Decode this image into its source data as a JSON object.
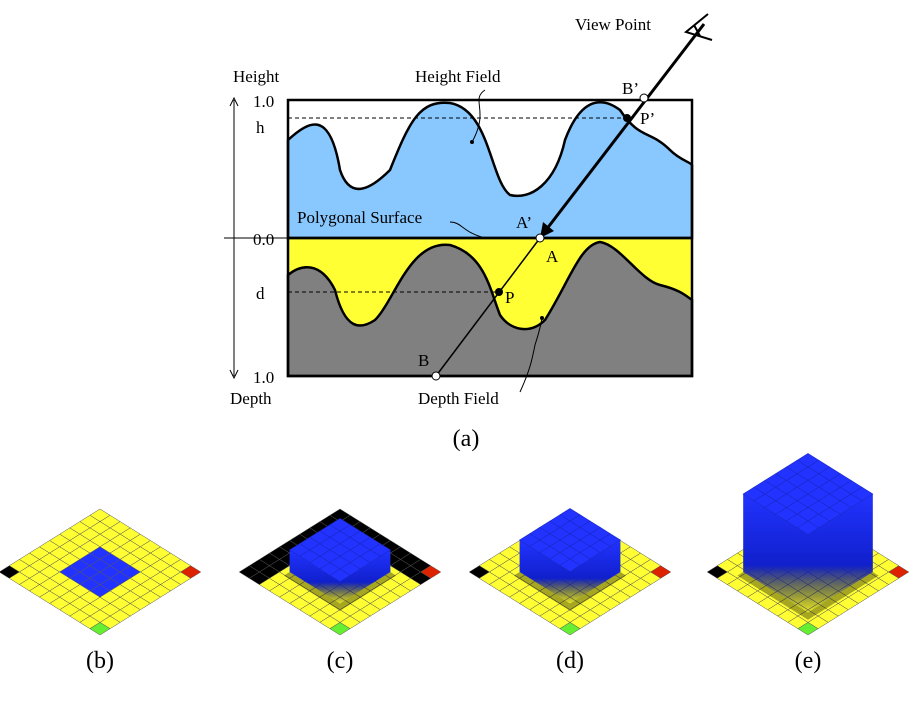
{
  "figure_a": {
    "view_point": "View Point",
    "height_axis": "Height",
    "depth_axis": "Depth",
    "height_field": "Height Field",
    "depth_field": "Depth Field",
    "polygonal_surface": "Polygonal Surface",
    "ticks": {
      "height_top": "1.0",
      "h": "h",
      "zero": "0.0",
      "d": "d",
      "depth_bottom": "1.0"
    },
    "points": {
      "b_prime": "B’",
      "p_prime": "P’",
      "a_prime": "A’",
      "a": "A",
      "p": "P",
      "b": "B"
    },
    "caption": "(a)"
  },
  "panels": [
    {
      "caption": "(b)"
    },
    {
      "caption": "(c)"
    },
    {
      "caption": "(d)"
    },
    {
      "caption": "(e)"
    }
  ]
}
